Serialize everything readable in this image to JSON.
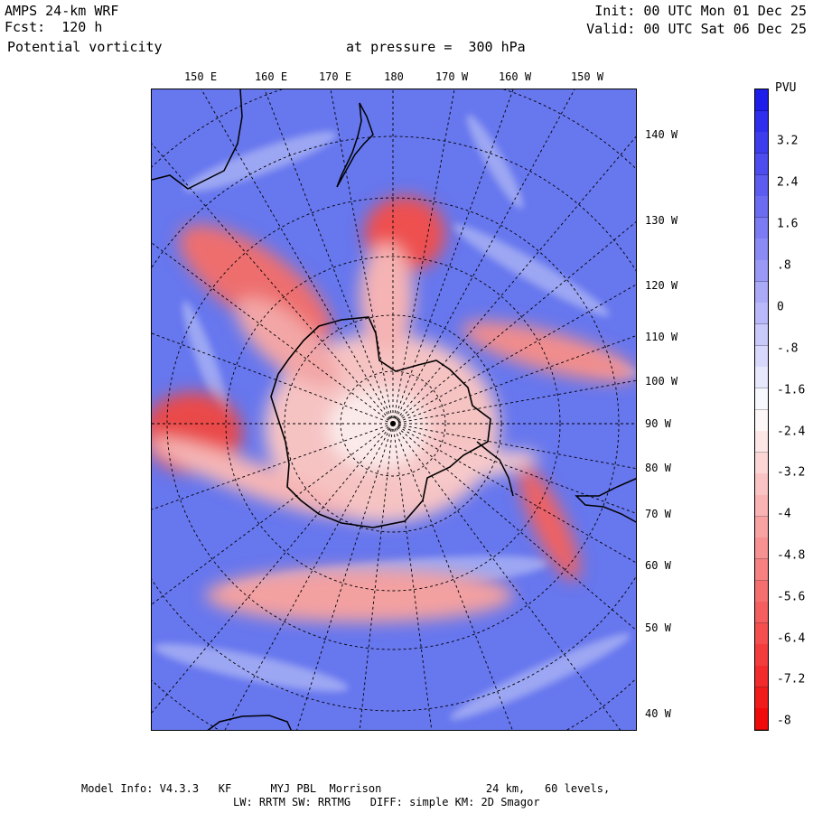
{
  "header": {
    "model_name": "AMPS 24-km WRF",
    "forecast": "Fcst:  120 h",
    "field": "Potential vorticity",
    "pressure_prefix": "at pressure =",
    "pressure_value": "300 hPa",
    "init": "Init: 00 UTC Mon 01 Dec 25",
    "valid": "Valid: 00 UTC Sat 06 Dec 25"
  },
  "map": {
    "top_lon_labels": [
      "150 E",
      "160 E",
      "170 E",
      "180",
      "170 W",
      "160 W",
      "150 W"
    ],
    "right_lon_labels": [
      "140 W",
      "130 W",
      "120 W",
      "110 W",
      "100 W",
      "90 W",
      "80 W",
      "70 W",
      "60 W",
      "50 W",
      "40 W"
    ],
    "colors": {
      "positive": "#3c3cef",
      "negative": "#ef2c2c",
      "neutral": "#ffffff",
      "coast": "#000000"
    }
  },
  "colorbar": {
    "unit": "PVU",
    "labels": [
      "3.2",
      "2.4",
      "1.6",
      ".8",
      "0",
      "-.8",
      "-1.6",
      "-2.4",
      "-3.2",
      "-4",
      "-4.8",
      "-5.6",
      "-6.4",
      "-7.2",
      "-8"
    ]
  },
  "footer": {
    "line1": "Model Info: V4.3.3   KF      MYJ PBL  Morrison                24 km,   60 levels,",
    "line2": "LW: RRTM SW: RRTMG   DIFF: simple KM: 2D Smagor"
  }
}
